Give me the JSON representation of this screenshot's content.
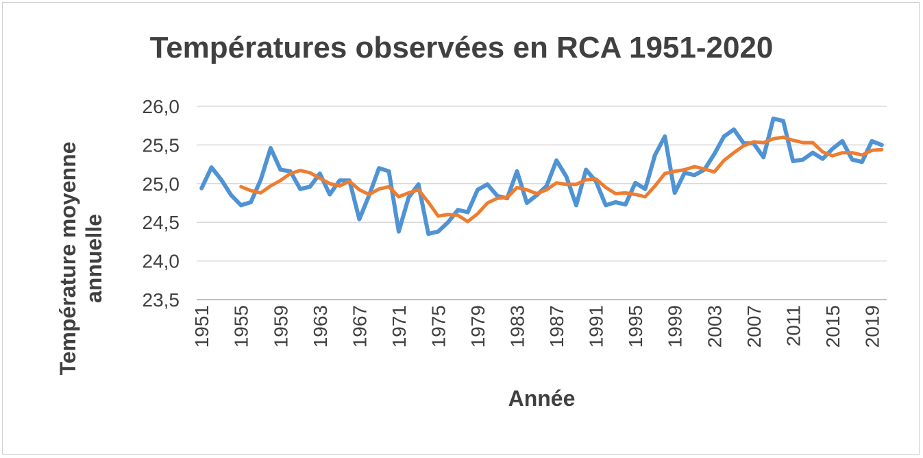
{
  "chart_data": {
    "type": "line",
    "title": "Températures observées en RCA 1951-2020",
    "xlabel": "Année",
    "ylabel": [
      "Température moyenne",
      "annuelle"
    ],
    "ylim": [
      23.5,
      26.0
    ],
    "yticks": [
      "23,5",
      "24,0",
      "24,5",
      "25,0",
      "25,5",
      "26,0"
    ],
    "ytick_values": [
      23.5,
      24.0,
      24.5,
      25.0,
      25.5,
      26.0
    ],
    "xticks": [
      "1951",
      "1955",
      "1959",
      "1963",
      "1967",
      "1971",
      "1975",
      "1979",
      "1983",
      "1987",
      "1991",
      "1995",
      "1999",
      "2003",
      "2007",
      "2011",
      "2015",
      "2019"
    ],
    "x_start": 1951,
    "x_end": 2020,
    "grid": "horizontal",
    "series": [
      {
        "color": "#4f93d4",
        "x_start": 1951,
        "values": [
          24.94,
          25.21,
          25.05,
          24.85,
          24.72,
          24.76,
          25.05,
          25.46,
          25.18,
          25.16,
          24.93,
          24.96,
          25.13,
          24.86,
          25.04,
          25.04,
          24.54,
          24.85,
          25.2,
          25.16,
          24.38,
          24.82,
          24.99,
          24.35,
          24.38,
          24.5,
          24.66,
          24.63,
          24.92,
          24.99,
          24.84,
          24.81,
          25.16,
          24.75,
          24.85,
          24.97,
          25.3,
          25.09,
          24.72,
          25.18,
          25.03,
          24.72,
          24.76,
          24.73,
          25.01,
          24.93,
          25.37,
          25.61,
          24.88,
          25.14,
          25.11,
          25.18,
          25.38,
          25.61,
          25.7,
          25.52,
          25.52,
          25.34,
          25.84,
          25.81,
          25.29,
          25.31,
          25.4,
          25.32,
          25.45,
          25.55,
          25.31,
          25.28,
          25.55,
          25.5
        ]
      },
      {
        "color": "#ed7d31",
        "x_start": 1955,
        "values": [
          24.96,
          24.91,
          24.88,
          24.97,
          25.04,
          25.13,
          25.17,
          25.14,
          25.07,
          25.0,
          24.97,
          25.03,
          24.92,
          24.86,
          24.93,
          24.96,
          24.83,
          24.88,
          24.92,
          24.76,
          24.58,
          24.6,
          24.59,
          24.51,
          24.61,
          24.75,
          24.81,
          24.82,
          24.95,
          24.92,
          24.87,
          24.92,
          25.01,
          24.99,
          24.99,
          25.05,
          25.06,
          24.95,
          24.87,
          24.88,
          24.86,
          24.83,
          24.97,
          25.13,
          25.16,
          25.18,
          25.22,
          25.19,
          25.15,
          25.3,
          25.4,
          25.49,
          25.54,
          25.53,
          25.58,
          25.6,
          25.56,
          25.53,
          25.53,
          25.41,
          25.36,
          25.4,
          25.4,
          25.37,
          25.43,
          25.44
        ]
      }
    ]
  }
}
